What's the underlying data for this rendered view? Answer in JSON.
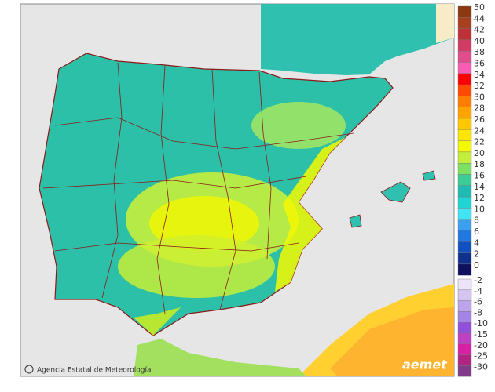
{
  "legend": {
    "items": [
      {
        "value": 50,
        "color": "#8b3a0f"
      },
      {
        "value": 44,
        "color": "#a8401e"
      },
      {
        "value": 42,
        "color": "#c03038"
      },
      {
        "value": 40,
        "color": "#d03c64"
      },
      {
        "value": 38,
        "color": "#e04c8c"
      },
      {
        "value": 36,
        "color": "#f85cb4"
      },
      {
        "value": 34,
        "color": "#ff0000"
      },
      {
        "value": 32,
        "color": "#ff4a00"
      },
      {
        "value": 30,
        "color": "#ff7e00"
      },
      {
        "value": 28,
        "color": "#ffa400"
      },
      {
        "value": 26,
        "color": "#ffc800"
      },
      {
        "value": 24,
        "color": "#ffe600"
      },
      {
        "value": 22,
        "color": "#f4f800"
      },
      {
        "value": 20,
        "color": "#c4ee3c"
      },
      {
        "value": 18,
        "color": "#7ce060"
      },
      {
        "value": 16,
        "color": "#3ccc98"
      },
      {
        "value": 14,
        "color": "#20bcb4"
      },
      {
        "value": 12,
        "color": "#20d4d4"
      },
      {
        "value": 10,
        "color": "#40e4f4"
      },
      {
        "value": 8,
        "color": "#3ca0f0"
      },
      {
        "value": 6,
        "color": "#2078e0"
      },
      {
        "value": 4,
        "color": "#1050c0"
      },
      {
        "value": 2,
        "color": "#103090"
      },
      {
        "value": 0,
        "color": "#101060"
      }
    ],
    "negative_items": [
      {
        "value": -2,
        "color": "#ece4f8"
      },
      {
        "value": -4,
        "color": "#d4c4f0"
      },
      {
        "value": -6,
        "color": "#bca4ec"
      },
      {
        "value": -8,
        "color": "#a484e4"
      },
      {
        "value": -10,
        "color": "#9050dc"
      },
      {
        "value": -15,
        "color": "#c040c4"
      },
      {
        "value": -20,
        "color": "#d820a4"
      },
      {
        "value": -25,
        "color": "#b02484"
      },
      {
        "value": -30,
        "color": "#803c88"
      }
    ]
  },
  "credit": "Agencia Estatal de Meteorología",
  "logo": "aemet"
}
